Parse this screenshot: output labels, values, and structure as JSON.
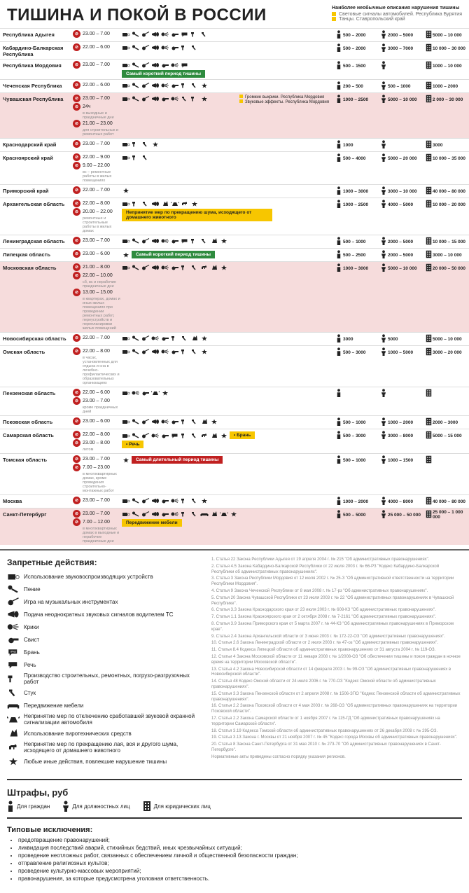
{
  "title": "ТИШИНА И ПОКОЙ В РОССИИ",
  "top_notes": {
    "title": "Наиболее необычные описания нарушения тишины",
    "items": [
      "Световые сигналы автомобилей. Республика Бурятия",
      "Танцы. Ставропольский край"
    ]
  },
  "fine_header": {
    "c1": "5000 – 10 000",
    "c2": "5000 – 10 000",
    "c3": "5000 – 10 000"
  },
  "callouts": {
    "mordovia": [
      "Громкие выкрики. Республика Мордовия",
      "Звуковые эффекты. Республика Мордовия"
    ],
    "arkh": "Непринятие мер по прекращению шума, исходящего от домашнего животного"
  },
  "rows": [
    {
      "name": "Республика Адыгея",
      "hl": "",
      "times": [
        {
          "t": "23.00 – 7.00"
        }
      ],
      "icons": [
        "radio",
        "mic",
        "guitar",
        "horn",
        "shout",
        "whistle",
        "speech",
        "hammer",
        "knock"
      ],
      "f": [
        "500 – 2000",
        "2000 – 5000",
        "5000 – 10 000"
      ]
    },
    {
      "name": "Кабардино-Балкарская Республика",
      "hl": "",
      "times": [
        {
          "t": "22.00 – 6.00"
        }
      ],
      "icons": [
        "radio",
        "mic",
        "guitar",
        "horn",
        "shout",
        "whistle",
        "hammer",
        "knock"
      ],
      "f": [
        "500 – 2000",
        "3000 – 7000",
        "10 000 – 30 000"
      ]
    },
    {
      "name": "Республика Мордовия",
      "hl": "",
      "times": [
        {
          "t": "23.00 – 7.00"
        }
      ],
      "icons": [
        "radio",
        "mic",
        "guitar",
        "horn",
        "whistle",
        "shout",
        "speech"
      ],
      "tag": {
        "type": "green",
        "text": "Самый короткий период тишины"
      },
      "f": [
        "500 – 1500",
        "",
        "1000 – 10 000"
      ]
    },
    {
      "name": "Чеченская Республика",
      "hl": "",
      "times": [
        {
          "t": "22.00 – 6.00"
        }
      ],
      "icons": [
        "radio",
        "mic",
        "guitar",
        "horn",
        "shout",
        "whistle",
        "hammer",
        "knock",
        "star"
      ],
      "f": [
        "200 – 500",
        "500 – 1000",
        "1000 – 2000"
      ]
    },
    {
      "name": "Чувашская Республика",
      "hl": "pink",
      "times": [
        {
          "t": "23.00 – 7.00"
        },
        {
          "t": "24ч",
          "sub": "в выходные и праздничные дни"
        },
        {
          "t": "21.00 – 23.00",
          "sub": "для строительных и ремонтных работ"
        }
      ],
      "icons": [
        "radio",
        "mic",
        "guitar",
        "horn",
        "whistle",
        "shout",
        "knock",
        "hammer",
        "star"
      ],
      "f": [
        "1000 – 2500",
        "5000 – 10 000",
        "2 000 – 30 000"
      ],
      "callout": "mordovia"
    },
    {
      "name": "Краснодарский край",
      "hl": "",
      "times": [
        {
          "t": "23.00 – 7.00"
        }
      ],
      "icons": [
        "radio",
        "hammer",
        "knock",
        "star"
      ],
      "f": [
        "1000",
        "",
        "3000"
      ]
    },
    {
      "name": "Красноярский край",
      "hl": "",
      "times": [
        {
          "t": "22.00 – 9.00"
        },
        {
          "t": "9.00 – 22.00",
          "sub": "вс – ремонтные работы в жилых помещениях"
        }
      ],
      "icons": [
        "radio",
        "hammer",
        "knock"
      ],
      "f": [
        "500 – 4000",
        "5000 – 20 000",
        "10 000 – 35 000"
      ]
    },
    {
      "name": "Приморский край",
      "hl": "",
      "times": [
        {
          "t": "22.00 – 7.00"
        }
      ],
      "icons": [
        "star"
      ],
      "f": [
        "1000 – 3000",
        "3000 – 10 000",
        "40 000 – 80 000"
      ]
    },
    {
      "name": "Архангельская область",
      "hl": "",
      "times": [
        {
          "t": "22.00 – 8.00"
        },
        {
          "t": "20.00 – 22.00",
          "sub": "ремонтные и строительные работы в жилых домах"
        }
      ],
      "icons": [
        "radio",
        "hammer",
        "knock",
        "horn",
        "fire",
        "alarm",
        "dog",
        "star"
      ],
      "f": [
        "1000 – 2500",
        "4000 – 5000",
        "10 000 – 20 000"
      ],
      "tag": {
        "type": "yellow",
        "text": "Непринятие мер по прекращению шума, исходящего от домашнего животного"
      }
    },
    {
      "name": "Ленинградская область",
      "hl": "",
      "times": [
        {
          "t": "23.00 – 7.00"
        }
      ],
      "icons": [
        "radio",
        "mic",
        "guitar",
        "horn",
        "shout",
        "whistle",
        "speech",
        "hammer",
        "knock",
        "fire",
        "star"
      ],
      "f": [
        "500 – 1000",
        "2000 – 5000",
        "10 000 – 15 000"
      ]
    },
    {
      "name": "Липецкая область",
      "hl": "",
      "times": [
        {
          "t": "23.00 – 6.00"
        }
      ],
      "icons": [
        "star"
      ],
      "tag": {
        "type": "green",
        "text": "Самый короткий период тишины"
      },
      "f": [
        "500 – 2500",
        "2000 – 5000",
        "3000 – 10 000"
      ]
    },
    {
      "name": "Московская область",
      "hl": "pink",
      "times": [
        {
          "t": "21.00 – 8.00"
        },
        {
          "t": "22.00 – 10.00",
          "sub": "сб, вс и нерабочие праздничные дни"
        },
        {
          "t": "13.00 – 15.00",
          "sub": "в квартирах, домах и иных жилых помещениях при проведении ремонтных работ, переустройств и перепланировки жилых помещений"
        }
      ],
      "icons": [
        "radio",
        "mic",
        "guitar",
        "horn",
        "shout",
        "whistle",
        "hammer",
        "knock",
        "dog",
        "fire",
        "star"
      ],
      "f": [
        "1000 – 3000",
        "5000 – 10 000",
        "20 000 – 50 000"
      ]
    },
    {
      "name": "Новосибирская область",
      "hl": "",
      "times": [
        {
          "t": "22.00 – 7.00"
        }
      ],
      "icons": [
        "radio",
        "mic",
        "guitar",
        "shout",
        "whistle",
        "hammer",
        "knock",
        "fire",
        "star"
      ],
      "f": [
        "3000",
        "5000",
        "5000 – 10 000"
      ]
    },
    {
      "name": "Омская область",
      "hl": "",
      "times": [
        {
          "t": "22.00 – 8.00",
          "sub": "в часах, установленных для отдыха и сна в лечебно-профилактических и образовательных организациях"
        }
      ],
      "icons": [
        "radio",
        "mic",
        "guitar",
        "horn",
        "shout",
        "whistle",
        "hammer",
        "knock",
        "star"
      ],
      "f": [
        "500 – 3000",
        "1000 – 5000",
        "3000 – 20 000"
      ]
    },
    {
      "name": "Пензенская область",
      "hl": "",
      "times": [
        {
          "t": "22.00 – 6.00"
        },
        {
          "t": "23.00 – 7.00",
          "sub": "кроме праздничных дней"
        }
      ],
      "icons": [
        "radio",
        "shout",
        "whistle",
        "alarm",
        "star"
      ],
      "f": [
        "",
        "",
        ""
      ]
    },
    {
      "name": "Псковская область",
      "hl": "",
      "times": [
        {
          "t": "23.00 – 6.00"
        }
      ],
      "icons": [
        "radio",
        "mic",
        "guitar",
        "horn",
        "shout",
        "whistle",
        "hammer",
        "knock",
        "fire",
        "star"
      ],
      "f": [
        "500 – 1000",
        "1000 – 2000",
        "2000 – 3000"
      ]
    },
    {
      "name": "Самарская область",
      "hl": "",
      "times": [
        {
          "t": "22.00 – 8.00"
        },
        {
          "t": "23.00 – 8.00",
          "sub": "летом"
        }
      ],
      "icons": [
        "radio",
        "mic",
        "guitar",
        "shout",
        "whistle",
        "speech",
        "hammer",
        "knock",
        "dog",
        "fire",
        "star"
      ],
      "f": [
        "500 – 3000",
        "3000 – 8000",
        "5000 – 15 000"
      ],
      "tags": [
        {
          "type": "yellow",
          "text": "• Брань"
        },
        {
          "type": "yellow",
          "text": "• Речь"
        }
      ]
    },
    {
      "name": "Томская область",
      "hl": "",
      "times": [
        {
          "t": "23.00 – 7.00"
        },
        {
          "t": "7.00 – 23.00",
          "sub": "в многоквартирных домах, кроме проведения строительно-монтажных работ"
        }
      ],
      "icons": [
        "star"
      ],
      "tag": {
        "type": "red",
        "text": "Самый длительный период тишины"
      },
      "f": [
        "500 – 1000",
        "1000 – 1500",
        ""
      ]
    },
    {
      "name": "Москва",
      "hl": "",
      "times": [
        {
          "t": "23.00 – 7.00"
        }
      ],
      "icons": [
        "radio",
        "mic",
        "guitar",
        "horn",
        "whistle",
        "shout",
        "hammer",
        "knock",
        "star"
      ],
      "f": [
        "1000 – 2000",
        "4000 – 8000",
        "40 000 – 80 000"
      ]
    },
    {
      "name": "Санкт-Петербург",
      "hl": "pink",
      "times": [
        {
          "t": "23.00 – 7.00"
        },
        {
          "t": "7.00 – 12.00",
          "sub": "в многоквартирных домах в выходные и нерабочие праздничные дни"
        }
      ],
      "icons": [
        "radio",
        "mic",
        "guitar",
        "horn",
        "whistle",
        "shout",
        "hammer",
        "knock",
        "sofa",
        "fire",
        "alarm",
        "star"
      ],
      "f": [
        "500 – 5000",
        "25 000 – 50 000",
        "25 000 – 1 000 000"
      ],
      "tag": {
        "type": "yellow",
        "text": "Передвижение мебели"
      }
    }
  ],
  "legend": {
    "title": "Запретные действия:",
    "items": [
      {
        "icon": "radio",
        "text": "Использование звуковоспроизводящих устройств"
      },
      {
        "icon": "mic",
        "text": "Пение"
      },
      {
        "icon": "guitar",
        "text": "Игра на музыкальных инструментах"
      },
      {
        "icon": "horn",
        "text": "Подача неоднократных звуковых сигналов водителем ТС"
      },
      {
        "icon": "shout",
        "text": "Крики"
      },
      {
        "icon": "whistle",
        "text": "Свист"
      },
      {
        "icon": "curse",
        "text": "Брань"
      },
      {
        "icon": "speech",
        "text": "Речь"
      },
      {
        "icon": "hammer",
        "text": "Производство строительных, ремонтных, погрузо-разгрузочных работ"
      },
      {
        "icon": "knock",
        "text": "Стук"
      },
      {
        "icon": "sofa",
        "text": "Передвижение мебели"
      },
      {
        "icon": "alarm",
        "text": "Непринятие мер по отключению сработавшей звуковой охранной сигнализации автомобиля"
      },
      {
        "icon": "fire",
        "text": "Использование пиротехнических средств"
      },
      {
        "icon": "dog",
        "text": "Непринятие мер по прекращению лая, воя и другого шума, исходящего от домашнего животного"
      },
      {
        "icon": "star",
        "text": "Любые иные действия, повлекшие нарушение тишины"
      }
    ]
  },
  "laws": [
    "1. Статья 22 Закона Республики Адыгея от 19 апреля 2004 г. № 215 \"Об административных правонарушениях\".",
    "2. Статья 4.5 Закона Кабардино-Балкарской Республики от 22 июля 2003 г. № 66-РЗ \"Кодекс Кабардино-Балкарской Республики об административных правонарушениях\".",
    "3. Статья 3 Закона Республики Мордовия от 12 июля 2002 г. № 25-З \"Об административной ответственности на территории Республики Мордовия\".",
    "4. Статья 9 Закона Чеченской Республики от 8 мая 2008 г. № 17-рз \"Об административных правонарушениях\".",
    "5. Статья 20 Закона Чувашской Республики от 23 июля 2003 г. № 22 \"Об административных правонарушениях в Чувашской Республике\".",
    "6. Статья 3.3 Закона Краснодарского края от 23 июля 2003 г. № 608-КЗ \"Об административных правонарушениях\".",
    "7. Статья 1.1 Закона Красноярского края от 2 октября 2008 г. № 7-2161 \"Об административных правонарушениях\".",
    "8. Статья 3.9 Закона Приморского края от 5 марта 2007 г. № 44-КЗ \"Об административных правонарушениях в Приморском крае\".",
    "9. Статья 2.4 Закона Архангельской области от 3 июня 2003 г. № 172-22-ОЗ \"Об административных правонарушениях\".",
    "10. Статья 2.6 Закона Ленинградской области от 2 июля 2003 г. № 47-оз \"Об административных правонарушениях\".",
    "11. Статья 8.4 Кодекса Липецкой области об административных правонарушениях от 31 августа 2004 г. № 119-ОЗ.",
    "12. Статьи 4 Закона Московской области от 11 января 2008 г. № 1/2008-ОЗ \"Об обеспечении тишины и покоя граждан в ночное время на территории Московской области\".",
    "13. Статья 4.2 Закона Новосибирской области от 14 февраля 2003 г. № 99-ОЗ \"Об административных правонарушениях в Новосибирской области\".",
    "14. Статья 48 Кодекс Омской области от 24 июля 2006 г. № 770-ОЗ \"Кодекс Омской области об административных правонарушениях\".",
    "15. Статья 3.3 Закона Пензенской области от 2 апреля 2008 г. № 1506-ЗПО \"Кодекс Пензенской области об административных правонарушениях\".",
    "16. Статья 2.2 Закона Псковской области от 4 мая 2003 г. № 268-ОЗ \"Об административных правонарушениях на территории Псковской области\".",
    "17. Статья 2.2 Закона Самарской области от 1 ноября 2007 г. № 115-ГД \"Об административных правонарушениях на территории Самарской области\".",
    "18. Статья 3.19 Кодекса Томской области об административных правонарушениях от 26 декабря 2008 г. № 295-ОЗ.",
    "19. Статья 3.13 Закона г. Москвы от 21 ноября 2007 г. № 45 \"Кодекс города Москвы об административных правонарушениях\".",
    "20. Статья 8 Закона Санкт-Петербурга от 31 мая 2010 г. № 273-70 \"Об административных правонарушениях в Санкт-Петербурге\".",
    "Нормативные акты приведены согласно порядку указания регионов."
  ],
  "fines_legend": {
    "title": "Штрафы, руб",
    "items": [
      "Для граждан",
      "Для должностных лиц",
      "Для юридических лиц"
    ]
  },
  "exclusions": {
    "title": "Типовые исключения:",
    "items": [
      "предотвращение правонарушений;",
      "ликвидация последствий аварий, стихийных бедствий, иных чрезвычайных ситуаций;",
      "проведение неотложных работ, связанных с обеспечением личной и общественной безопасности граждан;",
      "отправление религиозных культов;",
      "проведение культурно-массовых мероприятий;",
      "правонарушения, за которые предусмотрена уголовная ответственность."
    ]
  }
}
